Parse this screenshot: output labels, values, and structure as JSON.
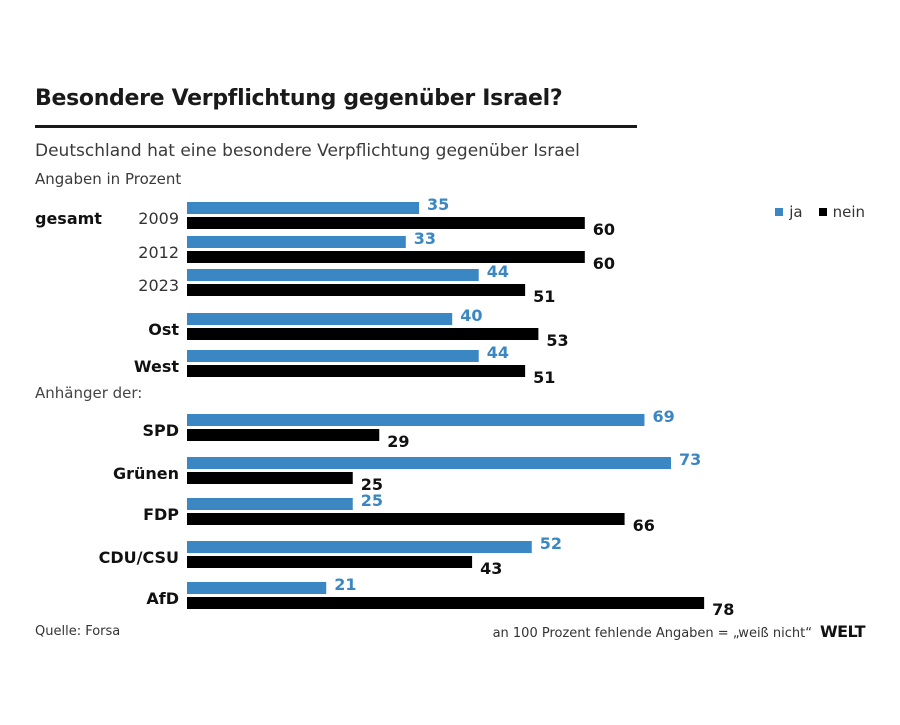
{
  "header": {
    "title": "Besondere Verpflichtung gegenüber Israel?",
    "subtitle": "Deutschland hat eine besondere Verpflichtung gegenüber Israel",
    "unit": "Angaben in Prozent"
  },
  "legend": [
    {
      "label": "ja",
      "color": "#3a87c4"
    },
    {
      "label": "nein",
      "color": "#000000"
    }
  ],
  "footer": {
    "source": "Quelle: Forsa",
    "note": "an 100 Prozent fehlende Angaben = „weiß nicht“",
    "brand": "WELT"
  },
  "chart_data": {
    "type": "bar",
    "orientation": "horizontal",
    "title": "Besondere Verpflichtung gegenüber Israel?",
    "subtitle": "Deutschland hat eine besondere Verpflichtung gegenüber Israel",
    "xlabel": "",
    "ylabel": "",
    "unit": "Prozent",
    "xlim": [
      0,
      100
    ],
    "grid": false,
    "legend_position": "top-right",
    "section_labels": {
      "group_label": "gesamt",
      "party_heading": "Anhänger der:"
    },
    "categories": [
      "2009",
      "2012",
      "2023",
      "Ost",
      "West",
      "SPD",
      "Grünen",
      "FDP",
      "CDU/CSU",
      "AfD"
    ],
    "category_bold": [
      false,
      false,
      false,
      true,
      true,
      true,
      true,
      true,
      true,
      true
    ],
    "series": [
      {
        "name": "ja",
        "color": "#3a87c4",
        "values": [
          35,
          33,
          44,
          40,
          44,
          69,
          73,
          25,
          52,
          21
        ]
      },
      {
        "name": "nein",
        "color": "#000000",
        "values": [
          60,
          60,
          51,
          53,
          51,
          29,
          25,
          66,
          43,
          78
        ]
      }
    ]
  }
}
